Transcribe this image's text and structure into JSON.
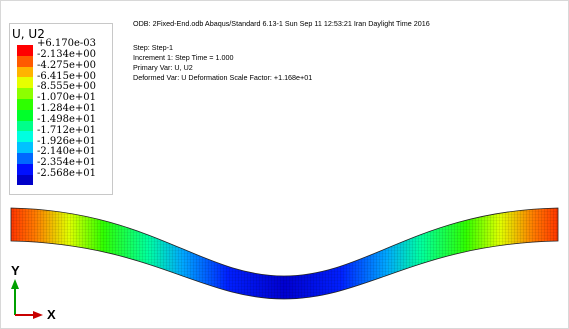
{
  "legend": {
    "title": "U, U2",
    "values": [
      "+6.170e-03",
      "-2.134e+00",
      "-4.275e+00",
      "-6.415e+00",
      "-8.555e+00",
      "-1.070e+01",
      "-1.284e+01",
      "-1.498e+01",
      "-1.712e+01",
      "-1.926e+01",
      "-2.140e+01",
      "-2.354e+01",
      "-2.568e+01"
    ],
    "colors": [
      "#ff0000",
      "#ff5a00",
      "#ffb400",
      "#e6ff00",
      "#8cff00",
      "#2eff00",
      "#00ff2a",
      "#00ff8a",
      "#00ffe0",
      "#00c2ff",
      "#0068ff",
      "#000fff",
      "#0000c8"
    ]
  },
  "info": {
    "odb_line": "ODB: 2Fixed-End.odb    Abaqus/Standard 6.13-1    Sun Sep 11 12:53:21 Iran Daylight Time 2016",
    "step_line": "Step: Step-1",
    "increment_line": "Increment    1: Step Time =    1.000",
    "primary_var_line": "Primary Var: U, U2",
    "deformed_var_line": "Deformed Var: U   Deformation Scale Factor: +1.168e+01"
  },
  "triad": {
    "x_label": "X",
    "y_label": "Y",
    "x_color": "#c80000",
    "y_color": "#00a000"
  }
}
